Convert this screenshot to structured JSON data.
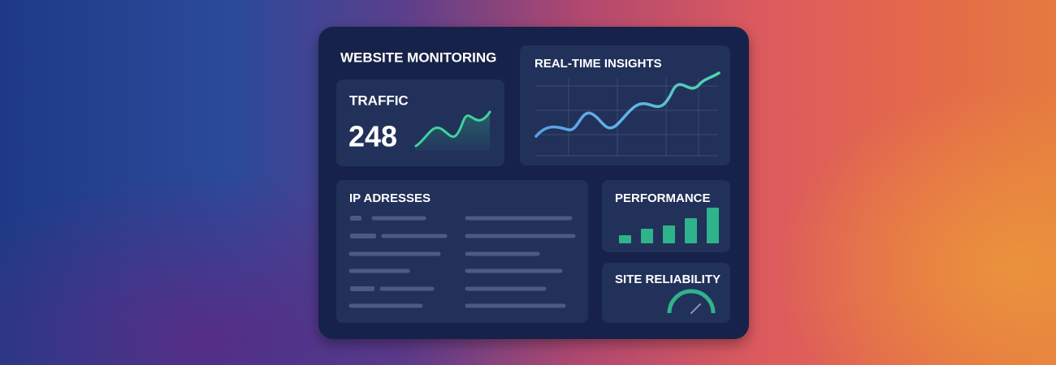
{
  "header": {
    "title": "WEBSITE MONITORING"
  },
  "cards": {
    "traffic": {
      "title": "TRAFFIC",
      "value": "248"
    },
    "insights": {
      "title": "REAL-TIME INSIGHTS"
    },
    "ip": {
      "title": "IP ADRESSES"
    },
    "performance": {
      "title": "PERFORMANCE"
    },
    "reliability": {
      "title": "SITE RELIABILITY"
    }
  }
}
